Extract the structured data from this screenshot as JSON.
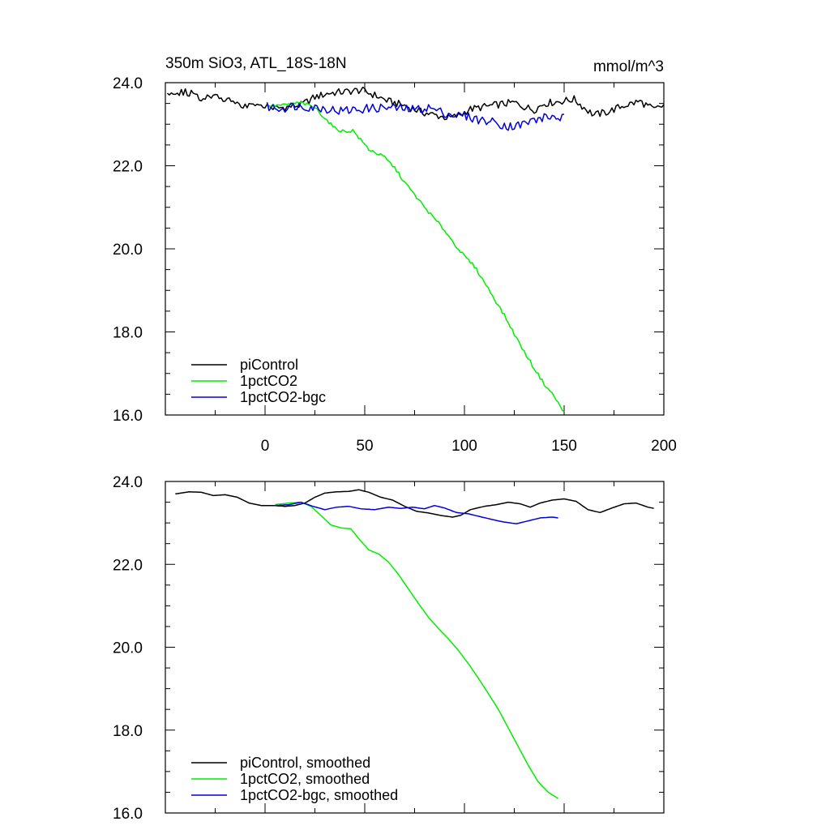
{
  "header": {
    "title": "350m SiO3, ATL_18S-18N",
    "units": "mmol/m^3"
  },
  "chart_data": [
    {
      "type": "line",
      "xlim": [
        -50,
        200
      ],
      "ylim": [
        16,
        24
      ],
      "x_ticks": [
        0,
        50,
        100,
        150,
        200
      ],
      "y_ticks": [
        "16.0",
        "18.0",
        "20.0",
        "22.0",
        "24.0"
      ],
      "x_tick_labels_shown": true,
      "legend_position": "bottom-left",
      "series": [
        {
          "name": "piControl",
          "color": "#000000",
          "x_start": -49,
          "x_end": 200,
          "anchors": [
            [
              -49,
              23.72
            ],
            [
              -40,
              23.78
            ],
            [
              -32,
              23.65
            ],
            [
              -25,
              23.72
            ],
            [
              -18,
              23.55
            ],
            [
              -12,
              23.45
            ],
            [
              -5,
              23.42
            ],
            [
              0,
              23.45
            ],
            [
              5,
              23.38
            ],
            [
              12,
              23.42
            ],
            [
              18,
              23.46
            ],
            [
              25,
              23.65
            ],
            [
              32,
              23.75
            ],
            [
              40,
              23.78
            ],
            [
              48,
              23.82
            ],
            [
              55,
              23.7
            ],
            [
              62,
              23.55
            ],
            [
              70,
              23.45
            ],
            [
              78,
              23.3
            ],
            [
              85,
              23.22
            ],
            [
              92,
              23.15
            ],
            [
              97,
              23.2
            ],
            [
              102,
              23.35
            ],
            [
              110,
              23.42
            ],
            [
              118,
              23.48
            ],
            [
              125,
              23.52
            ],
            [
              130,
              23.42
            ],
            [
              135,
              23.35
            ],
            [
              140,
              23.5
            ],
            [
              148,
              23.55
            ],
            [
              155,
              23.6
            ],
            [
              160,
              23.4
            ],
            [
              165,
              23.22
            ],
            [
              172,
              23.3
            ],
            [
              180,
              23.45
            ],
            [
              188,
              23.55
            ],
            [
              195,
              23.35
            ],
            [
              200,
              23.45
            ]
          ],
          "noise": 0.09
        },
        {
          "name": "1pctCO2",
          "color": "#00ee00",
          "x_start": 1,
          "x_end": 150,
          "anchors": [
            [
              1,
              23.44
            ],
            [
              10,
              23.46
            ],
            [
              18,
              23.52
            ],
            [
              25,
              23.4
            ],
            [
              30,
              23.15
            ],
            [
              35,
              22.9
            ],
            [
              40,
              22.82
            ],
            [
              44,
              22.85
            ],
            [
              48,
              22.62
            ],
            [
              52,
              22.4
            ],
            [
              56,
              22.3
            ],
            [
              60,
              22.2
            ],
            [
              65,
              21.95
            ],
            [
              70,
              21.6
            ],
            [
              75,
              21.3
            ],
            [
              80,
              21.0
            ],
            [
              85,
              20.72
            ],
            [
              90,
              20.45
            ],
            [
              95,
              20.12
            ],
            [
              100,
              19.82
            ],
            [
              105,
              19.58
            ],
            [
              110,
              19.2
            ],
            [
              115,
              18.8
            ],
            [
              120,
              18.4
            ],
            [
              125,
              17.95
            ],
            [
              130,
              17.52
            ],
            [
              135,
              17.12
            ],
            [
              140,
              16.75
            ],
            [
              145,
              16.45
            ],
            [
              150,
              16.05
            ]
          ],
          "noise": 0.04
        },
        {
          "name": "1pctCO2-bgc",
          "color": "#0000dd",
          "x_start": 1,
          "x_end": 150,
          "anchors": [
            [
              1,
              23.42
            ],
            [
              8,
              23.38
            ],
            [
              15,
              23.45
            ],
            [
              22,
              23.42
            ],
            [
              30,
              23.38
            ],
            [
              38,
              23.32
            ],
            [
              45,
              23.35
            ],
            [
              52,
              23.38
            ],
            [
              60,
              23.4
            ],
            [
              68,
              23.38
            ],
            [
              75,
              23.35
            ],
            [
              82,
              23.4
            ],
            [
              88,
              23.3
            ],
            [
              95,
              23.22
            ],
            [
              100,
              23.2
            ],
            [
              108,
              23.1
            ],
            [
              115,
              23.05
            ],
            [
              122,
              22.95
            ],
            [
              128,
              22.98
            ],
            [
              135,
              23.1
            ],
            [
              142,
              23.18
            ],
            [
              150,
              23.15
            ]
          ],
          "noise": 0.11
        }
      ],
      "legend": [
        "piControl",
        "1pctCO2",
        "1pctCO2-bgc"
      ]
    },
    {
      "type": "line",
      "xlim": [
        -50,
        200
      ],
      "ylim": [
        16,
        24
      ],
      "x_ticks": [
        0,
        50,
        100,
        150,
        200
      ],
      "y_ticks": [
        "16.0",
        "18.0",
        "20.0",
        "22.0",
        "24.0"
      ],
      "x_tick_labels_shown": false,
      "legend_position": "bottom-left",
      "series": [
        {
          "name": "piControl, smoothed",
          "color": "#000000",
          "x_start": -45,
          "x_end": 195,
          "anchors": [
            [
              -45,
              23.7
            ],
            [
              -38,
              23.75
            ],
            [
              -32,
              23.74
            ],
            [
              -26,
              23.66
            ],
            [
              -20,
              23.68
            ],
            [
              -14,
              23.62
            ],
            [
              -8,
              23.48
            ],
            [
              -2,
              23.42
            ],
            [
              4,
              23.42
            ],
            [
              10,
              23.4
            ],
            [
              15,
              23.42
            ],
            [
              20,
              23.48
            ],
            [
              25,
              23.62
            ],
            [
              30,
              23.72
            ],
            [
              36,
              23.75
            ],
            [
              42,
              23.76
            ],
            [
              47,
              23.8
            ],
            [
              52,
              23.74
            ],
            [
              58,
              23.62
            ],
            [
              64,
              23.55
            ],
            [
              70,
              23.4
            ],
            [
              76,
              23.28
            ],
            [
              82,
              23.24
            ],
            [
              88,
              23.18
            ],
            [
              94,
              23.14
            ],
            [
              98,
              23.18
            ],
            [
              103,
              23.32
            ],
            [
              110,
              23.4
            ],
            [
              116,
              23.44
            ],
            [
              122,
              23.5
            ],
            [
              128,
              23.46
            ],
            [
              133,
              23.38
            ],
            [
              138,
              23.48
            ],
            [
              144,
              23.55
            ],
            [
              150,
              23.58
            ],
            [
              156,
              23.52
            ],
            [
              162,
              23.32
            ],
            [
              168,
              23.25
            ],
            [
              174,
              23.36
            ],
            [
              180,
              23.46
            ],
            [
              186,
              23.48
            ],
            [
              192,
              23.38
            ],
            [
              195,
              23.35
            ]
          ],
          "noise": 0.0
        },
        {
          "name": "1pctCO2, smoothed",
          "color": "#00ee00",
          "x_start": 5,
          "x_end": 147,
          "anchors": [
            [
              5,
              23.44
            ],
            [
              12,
              23.48
            ],
            [
              18,
              23.5
            ],
            [
              23,
              23.4
            ],
            [
              28,
              23.18
            ],
            [
              33,
              22.95
            ],
            [
              38,
              22.88
            ],
            [
              43,
              22.86
            ],
            [
              47,
              22.62
            ],
            [
              52,
              22.35
            ],
            [
              57,
              22.25
            ],
            [
              62,
              22.05
            ],
            [
              67,
              21.75
            ],
            [
              72,
              21.4
            ],
            [
              77,
              21.05
            ],
            [
              82,
              20.72
            ],
            [
              87,
              20.45
            ],
            [
              92,
              20.2
            ],
            [
              97,
              19.92
            ],
            [
              102,
              19.6
            ],
            [
              107,
              19.25
            ],
            [
              112,
              18.88
            ],
            [
              117,
              18.5
            ],
            [
              122,
              18.05
            ],
            [
              127,
              17.6
            ],
            [
              132,
              17.15
            ],
            [
              137,
              16.75
            ],
            [
              142,
              16.5
            ],
            [
              147,
              16.35
            ]
          ],
          "noise": 0.0
        },
        {
          "name": "1pctCO2-bgc, smoothed",
          "color": "#0000dd",
          "x_start": 5,
          "x_end": 147,
          "anchors": [
            [
              5,
              23.42
            ],
            [
              12,
              23.44
            ],
            [
              18,
              23.5
            ],
            [
              24,
              23.4
            ],
            [
              30,
              23.32
            ],
            [
              36,
              23.38
            ],
            [
              42,
              23.4
            ],
            [
              48,
              23.34
            ],
            [
              55,
              23.32
            ],
            [
              62,
              23.38
            ],
            [
              68,
              23.35
            ],
            [
              74,
              23.38
            ],
            [
              80,
              23.34
            ],
            [
              85,
              23.42
            ],
            [
              90,
              23.36
            ],
            [
              96,
              23.25
            ],
            [
              102,
              23.22
            ],
            [
              108,
              23.15
            ],
            [
              114,
              23.08
            ],
            [
              120,
              23.02
            ],
            [
              126,
              22.98
            ],
            [
              132,
              23.05
            ],
            [
              138,
              23.12
            ],
            [
              144,
              23.14
            ],
            [
              147,
              23.12
            ]
          ],
          "noise": 0.0
        }
      ],
      "legend": [
        "piControl, smoothed",
        "1pctCO2, smoothed",
        "1pctCO2-bgc, smoothed"
      ]
    }
  ]
}
